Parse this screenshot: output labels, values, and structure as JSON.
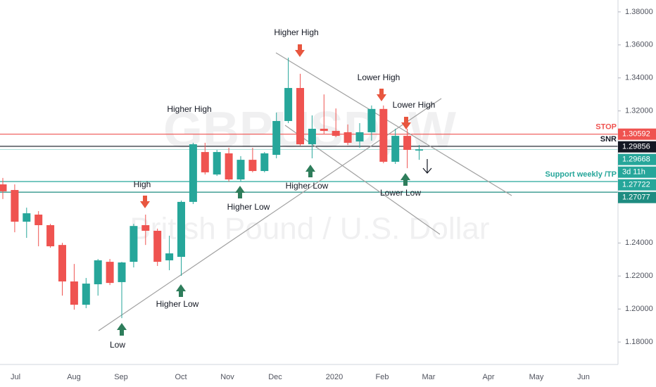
{
  "chart_data": {
    "type": "candlestick",
    "watermark_symbol": "GBPUSD, W",
    "watermark_name": "British Pound / U.S. Dollar",
    "x_labels": [
      "Jul",
      "Aug",
      "Sep",
      "Oct",
      "Nov",
      "Dec",
      "2020",
      "Feb",
      "Mar",
      "Apr",
      "May",
      "Jun"
    ],
    "open": [
      1.2755,
      1.2721,
      1.2529,
      1.2572,
      1.2508,
      1.2388,
      1.2167,
      1.2026,
      1.215,
      1.2286,
      1.2163,
      1.2286,
      1.2508,
      1.2474,
      1.2295,
      1.2316,
      1.2649,
      1.2951,
      1.2815,
      1.2943,
      1.2785,
      1.2904,
      1.2836,
      1.2934,
      1.3139,
      1.3339,
      1.2998,
      1.3092,
      1.3079,
      1.3071,
      1.3015,
      1.3071,
      1.3212,
      1.2892,
      1.3049,
      1.296
    ],
    "high": [
      1.2794,
      1.2755,
      1.2614,
      1.2593,
      1.2516,
      1.2401,
      1.2273,
      1.2188,
      1.2303,
      1.2303,
      1.2286,
      1.2516,
      1.2572,
      1.2487,
      1.2444,
      1.2657,
      1.3007,
      1.3007,
      1.2964,
      1.2977,
      1.2926,
      1.2977,
      1.2951,
      1.319,
      1.3523,
      1.3425,
      1.3173,
      1.33,
      1.3215,
      1.3118,
      1.3126,
      1.3233,
      1.3233,
      1.3092,
      1.3092,
      1.2994
    ],
    "low": [
      1.2666,
      1.2465,
      1.2431,
      1.238,
      1.2371,
      1.2081,
      1.1996,
      1.2005,
      1.2081,
      1.2145,
      1.1945,
      1.2252,
      1.2388,
      1.2261,
      1.2235,
      1.2201,
      1.2636,
      1.2815,
      1.2806,
      1.2772,
      1.2772,
      1.2828,
      1.2828,
      1.2913,
      1.3126,
      1.299,
      1.2913,
      1.3062,
      1.3041,
      1.2994,
      1.2977,
      1.302,
      1.2883,
      1.2879,
      1.2853,
      1.2904
    ],
    "close": [
      1.2713,
      1.2529,
      1.258,
      1.2508,
      1.238,
      1.2167,
      1.2026,
      1.2154,
      1.2295,
      1.2158,
      1.2282,
      1.2503,
      1.2474,
      1.2286,
      1.2337,
      1.2649,
      1.2998,
      1.2828,
      1.2951,
      1.2785,
      1.2904,
      1.2836,
      1.2943,
      1.3139,
      1.3339,
      1.2998,
      1.3092,
      1.3079,
      1.3049,
      1.3007,
      1.3071,
      1.3212,
      1.2892,
      1.3049,
      1.2964,
      1.2967
    ],
    "up_color": "#26a69a",
    "down_color": "#ef5350",
    "ylim": [
      1.1664,
      1.3872
    ],
    "yticks": [
      {
        "value": 1.18,
        "label": "1.18000"
      },
      {
        "value": 1.2,
        "label": "1.20000"
      },
      {
        "value": 1.22,
        "label": "1.22000"
      },
      {
        "value": 1.24,
        "label": "1.24000"
      },
      {
        "value": 1.32,
        "label": "1.32000"
      },
      {
        "value": 1.34,
        "label": "1.34000"
      },
      {
        "value": 1.36,
        "label": "1.36000"
      },
      {
        "value": 1.38,
        "label": "1.38000"
      }
    ],
    "levels": [
      {
        "name": "STOP",
        "value": 1.30592,
        "color": "#ef5350"
      },
      {
        "name": "SNR",
        "value": 1.29856,
        "color": "#131722"
      },
      {
        "value": 1.29668,
        "color": "#26a69a",
        "countdown": "3d 11h"
      },
      {
        "name": "Support weekly /TP",
        "value": 1.27722,
        "color": "#26a69a"
      },
      {
        "value": 1.27077,
        "color": "#1e8c81"
      }
    ],
    "annotations": [
      "Higher High",
      "Lower High",
      "Lower High",
      "Higher High",
      "High",
      "Higher Low",
      "Lower Low",
      "Higher Low",
      "Higher Low",
      "Low"
    ]
  }
}
